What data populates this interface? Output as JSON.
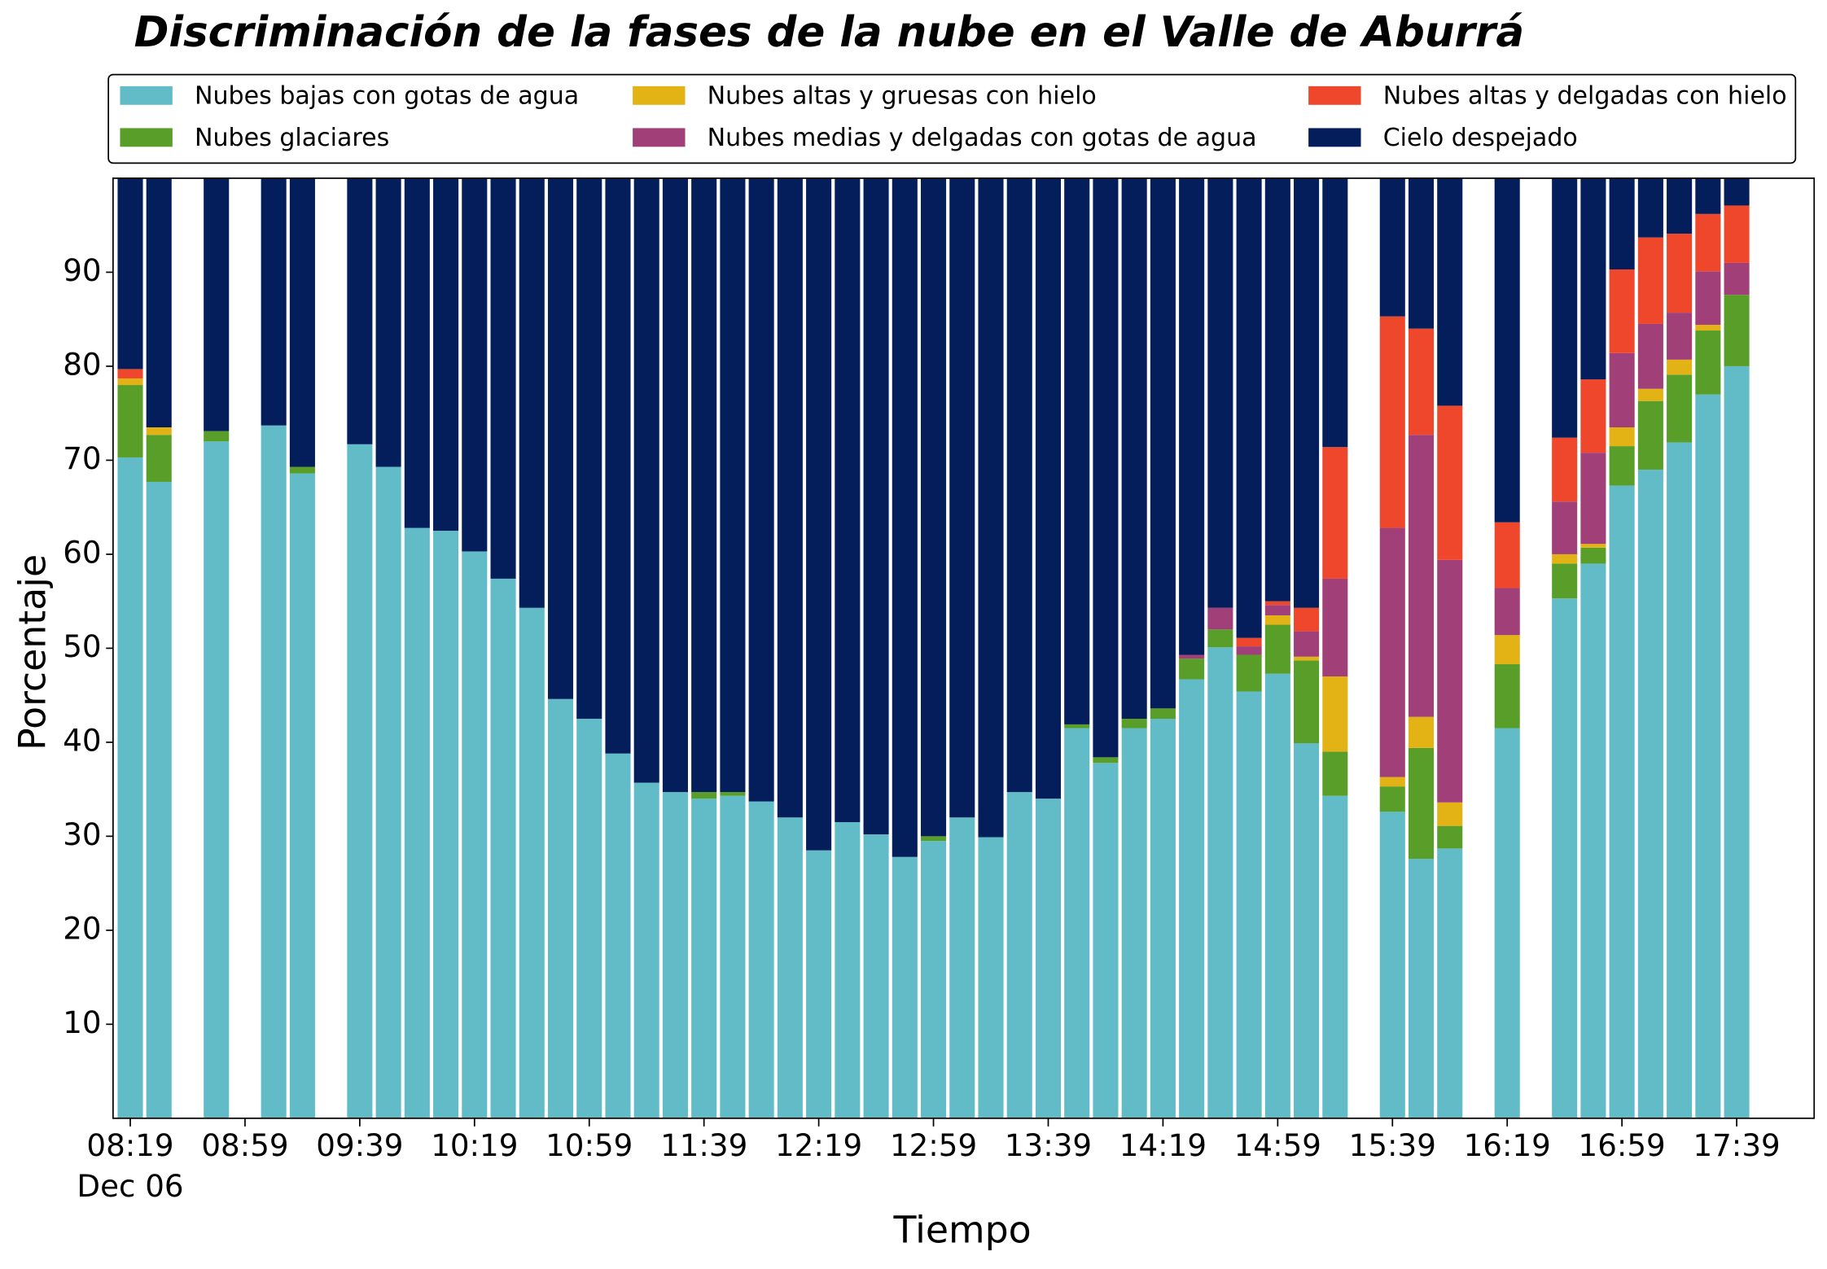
{
  "chart_data": {
    "type": "stacked_bar",
    "title": "Discriminación de la fases de la nube en el Valle de Aburrá",
    "x_label": "Tiempo",
    "y_label": "Porcentaje",
    "x_sublabel": "Dec 06",
    "legend": "top",
    "grid": false,
    "xlim": [
      "08:13",
      "18:06"
    ],
    "xticks": [
      "08:19",
      "08:59",
      "09:39",
      "10:19",
      "10:59",
      "11:39",
      "12:19",
      "12:59",
      "13:39",
      "14:19",
      "14:59",
      "15:39",
      "16:19",
      "16:59",
      "17:39"
    ],
    "ylim": [
      0,
      100
    ],
    "yticks": [
      10,
      20,
      30,
      40,
      50,
      60,
      70,
      80,
      90
    ],
    "x": [
      "08:19",
      "08:29",
      "08:49",
      "09:09",
      "09:19",
      "09:39",
      "09:49",
      "09:59",
      "10:09",
      "10:19",
      "10:29",
      "10:39",
      "10:49",
      "10:59",
      "11:09",
      "11:19",
      "11:29",
      "11:39",
      "11:49",
      "11:59",
      "12:09",
      "12:19",
      "12:29",
      "12:39",
      "12:49",
      "12:59",
      "13:09",
      "13:19",
      "13:29",
      "13:39",
      "13:49",
      "13:59",
      "14:09",
      "14:19",
      "14:29",
      "14:39",
      "14:49",
      "14:59",
      "15:09",
      "15:19",
      "15:39",
      "15:49",
      "15:59",
      "16:19",
      "16:39",
      "16:49",
      "16:59",
      "17:09",
      "17:19",
      "17:29",
      "17:39"
    ],
    "series": [
      {
        "name": "Nubes bajas con gotas de agua",
        "color": "#62bcc8",
        "values": [
          70.3,
          67.7,
          72.0,
          73.7,
          68.6,
          71.7,
          69.3,
          62.8,
          62.5,
          60.3,
          57.4,
          54.3,
          44.6,
          42.5,
          38.8,
          35.7,
          34.7,
          34.0,
          34.3,
          33.7,
          32.0,
          28.5,
          31.5,
          30.2,
          27.8,
          29.5,
          32.0,
          29.9,
          34.7,
          34.0,
          41.5,
          37.8,
          41.5,
          42.5,
          46.7,
          50.1,
          45.4,
          47.3,
          39.9,
          34.3,
          32.6,
          27.6,
          28.7,
          41.5,
          55.3,
          59.0,
          67.3,
          69.0,
          71.9,
          77.0,
          80.0
        ]
      },
      {
        "name": "Nubes glaciares",
        "color": "#5a9e2a",
        "values": [
          7.7,
          5.0,
          1.1,
          0,
          0.7,
          0,
          0,
          0,
          0,
          0,
          0,
          0,
          0,
          0,
          0,
          0,
          0,
          0.7,
          0.4,
          0,
          0,
          0,
          0,
          0,
          0,
          0.5,
          0,
          0,
          0,
          0,
          0.4,
          0.6,
          1.0,
          1.1,
          2.2,
          1.9,
          3.9,
          5.2,
          8.8,
          4.7,
          2.7,
          11.8,
          2.4,
          6.8,
          3.7,
          1.7,
          4.2,
          7.3,
          7.2,
          6.8,
          7.6
        ]
      },
      {
        "name": "Nubes altas y gruesas con hielo",
        "color": "#e3b316",
        "values": [
          0.7,
          0.8,
          0,
          0,
          0,
          0,
          0,
          0,
          0,
          0,
          0,
          0,
          0,
          0,
          0,
          0,
          0,
          0,
          0,
          0,
          0,
          0,
          0,
          0,
          0,
          0,
          0,
          0,
          0,
          0,
          0,
          0,
          0,
          0,
          0,
          0,
          0,
          1.0,
          0.4,
          8.0,
          1.0,
          3.3,
          2.5,
          3.1,
          1.0,
          0.4,
          2.0,
          1.3,
          1.6,
          0.6,
          0
        ]
      },
      {
        "name": "Nubes medias y delgadas con gotas de agua",
        "color": "#a03f78",
        "values": [
          0,
          0,
          0,
          0,
          0,
          0,
          0,
          0,
          0,
          0,
          0,
          0,
          0,
          0,
          0,
          0,
          0,
          0,
          0,
          0,
          0,
          0,
          0,
          0,
          0,
          0,
          0,
          0,
          0,
          0,
          0,
          0,
          0,
          0,
          0.4,
          2.3,
          0.9,
          1.1,
          2.7,
          10.4,
          26.5,
          30.0,
          25.8,
          5.0,
          5.6,
          9.7,
          7.9,
          6.9,
          5.0,
          5.7,
          3.4
        ]
      },
      {
        "name": "Nubes altas y delgadas con hielo",
        "color": "#ee472b",
        "values": [
          1.0,
          0,
          0,
          0,
          0,
          0,
          0,
          0,
          0,
          0,
          0,
          0,
          0,
          0,
          0,
          0,
          0,
          0,
          0,
          0,
          0,
          0,
          0,
          0,
          0,
          0,
          0,
          0,
          0,
          0,
          0,
          0,
          0,
          0,
          0,
          0,
          0.9,
          0.4,
          2.5,
          14.0,
          22.5,
          11.3,
          16.4,
          7.0,
          6.8,
          7.8,
          8.9,
          9.2,
          8.4,
          6.1,
          6.1
        ]
      },
      {
        "name": "Cielo despejado",
        "color": "#041e5c",
        "values": [
          20.3,
          26.5,
          26.9,
          26.3,
          30.7,
          28.3,
          30.7,
          37.2,
          37.5,
          39.7,
          42.6,
          45.7,
          55.4,
          57.5,
          61.2,
          64.3,
          65.3,
          65.3,
          65.3,
          66.3,
          68.0,
          71.5,
          68.5,
          69.8,
          72.2,
          70.0,
          68.0,
          70.1,
          65.3,
          66.0,
          58.1,
          61.6,
          57.5,
          56.4,
          50.7,
          45.7,
          48.9,
          45.0,
          45.7,
          28.6,
          14.7,
          16.0,
          24.2,
          36.6,
          27.6,
          21.4,
          9.7,
          6.3,
          5.9,
          3.8,
          2.9
        ]
      }
    ]
  }
}
